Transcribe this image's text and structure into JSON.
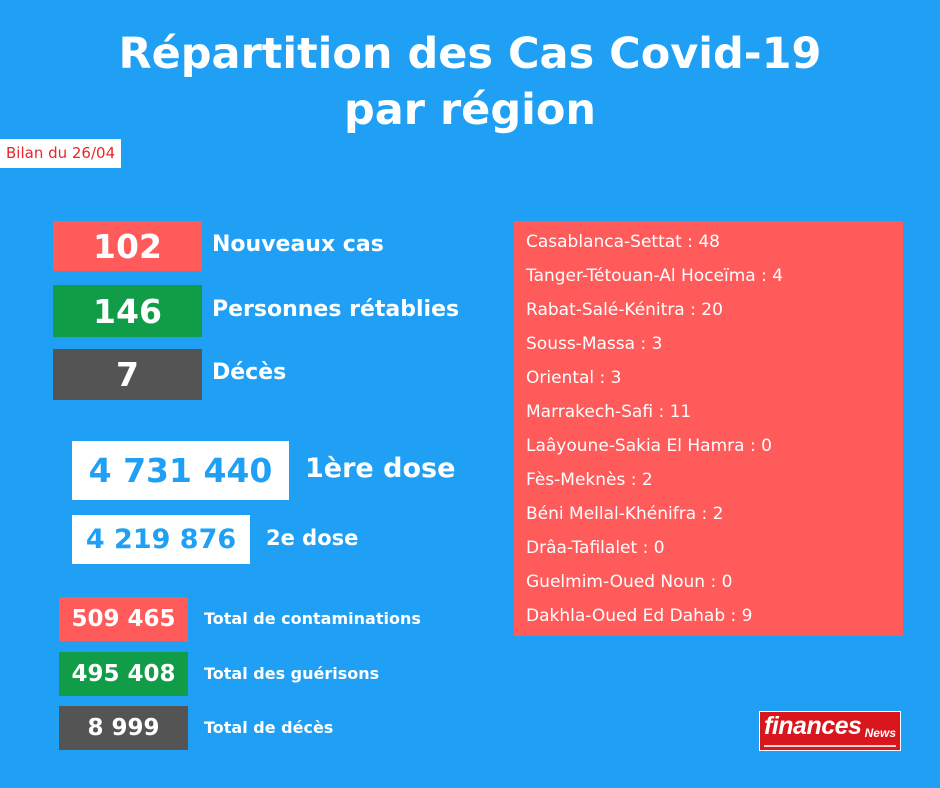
{
  "title": {
    "line1": "Répartition des Cas Covid-19",
    "line2": "par région"
  },
  "bilan": "Bilan du 26/04",
  "daily": {
    "new_cases": {
      "value": "102",
      "label": "Nouveaux cas"
    },
    "recovered": {
      "value": "146",
      "label": "Personnes rétablies"
    },
    "deaths": {
      "value": "7",
      "label": "Décès"
    }
  },
  "vaccination": {
    "dose1": {
      "value": "4 731 440",
      "label": "1ère dose"
    },
    "dose2": {
      "value": "4 219 876",
      "label": "2e dose"
    }
  },
  "totals": {
    "contaminations": {
      "value": "509 465",
      "label": "Total de contaminations"
    },
    "recoveries": {
      "value": "495 408",
      "label": "Total des guérisons"
    },
    "deaths": {
      "value": "8 999",
      "label": "Total de décès"
    }
  },
  "regions": [
    "Casablanca-Settat : 48",
    "Tanger-Tétouan-Al Hoceïma : 4",
    "Rabat-Salé-Kénitra : 20",
    "Souss-Massa : 3",
    "Oriental : 3",
    "Marrakech-Safi : 11",
    "Laâyoune-Sakia El Hamra : 0",
    "Fès-Meknès : 2",
    "Béni Mellal-Khénifra : 2",
    "Drâa-Tafilalet : 0",
    "Guelmim-Oued Noun : 0",
    "Dakhla-Oued Ed Dahab : 9"
  ],
  "logo": {
    "name": "finances",
    "sub": "News"
  },
  "colors": {
    "background": "#1fa0f4",
    "red": "#ff5b5b",
    "green": "#119c48",
    "grey": "#545454"
  }
}
